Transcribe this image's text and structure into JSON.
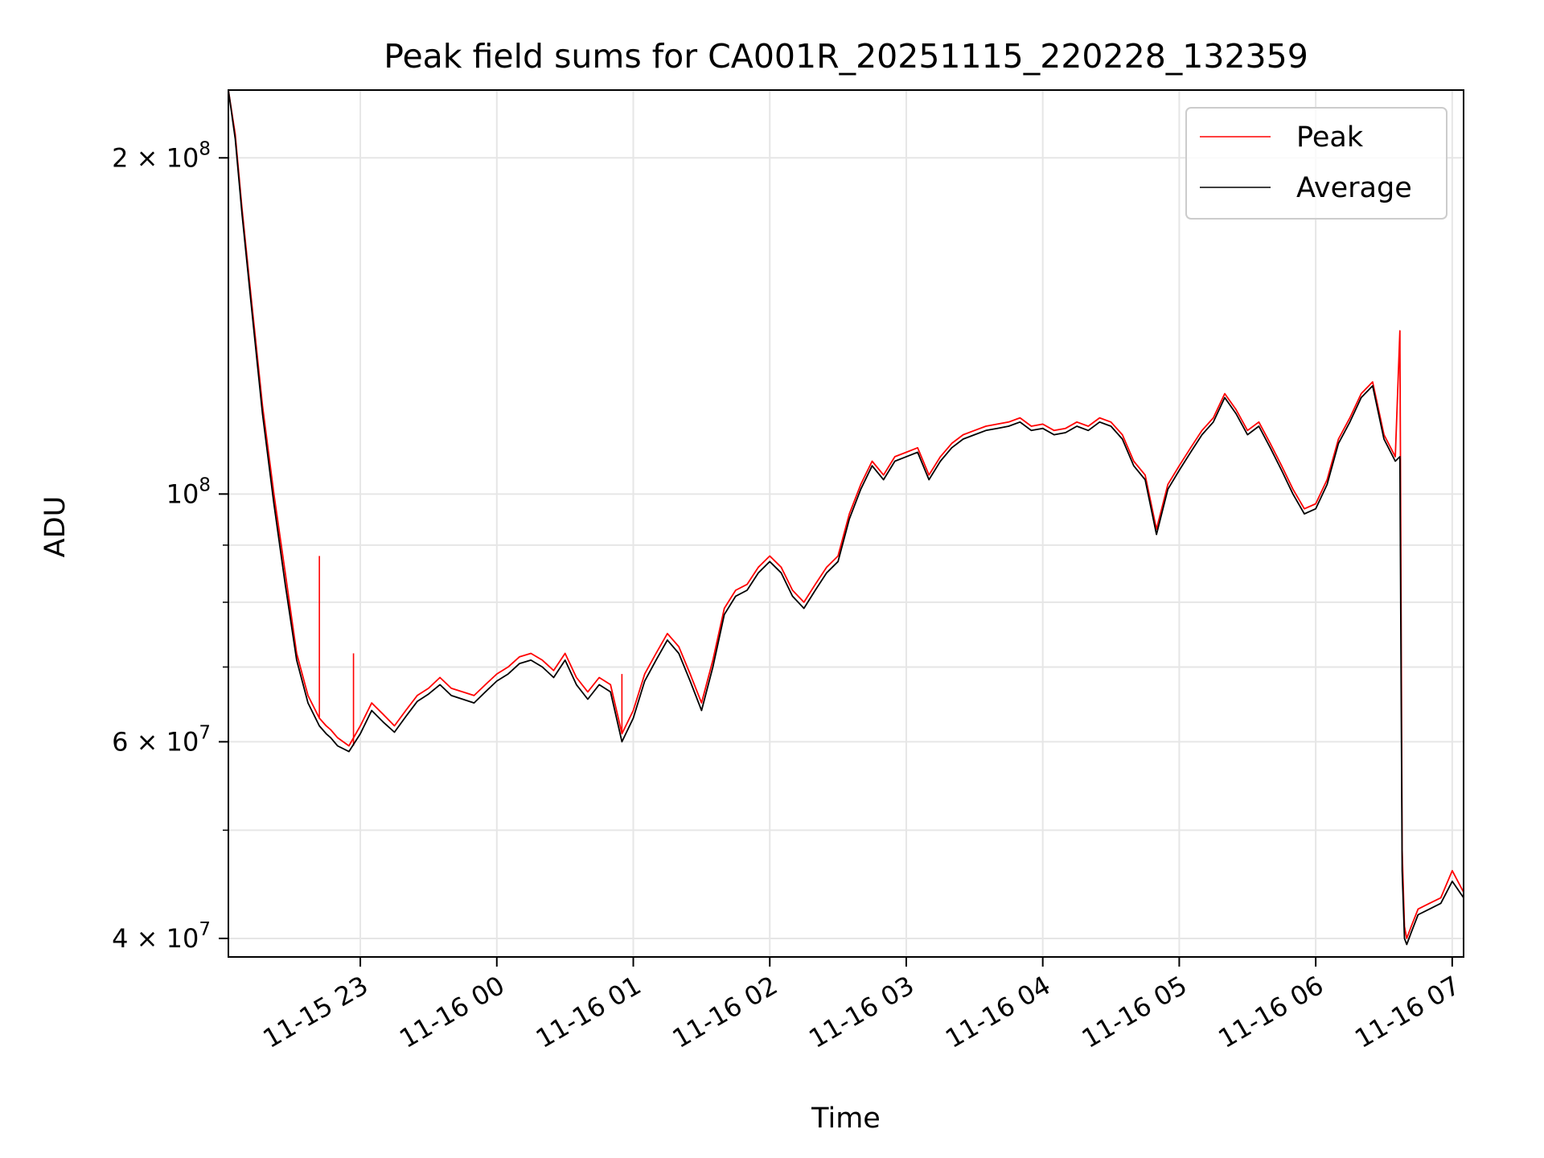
{
  "chart_data": {
    "type": "line",
    "title": "Peak field sums for CA001R_20251115_220228_132359",
    "xlabel": "Time",
    "ylabel": "ADU",
    "yscale": "log",
    "ylim": [
      38500000,
      230000000
    ],
    "xlim": [
      "2025-11-15 22:02",
      "2025-11-16 07:05"
    ],
    "grid": true,
    "legend_position": "top-right",
    "x_ticks": [
      {
        "value": "2025-11-15 23:00",
        "label": "11-15 23"
      },
      {
        "value": "2025-11-16 00:00",
        "label": "11-16 00"
      },
      {
        "value": "2025-11-16 01:00",
        "label": "11-16 01"
      },
      {
        "value": "2025-11-16 02:00",
        "label": "11-16 02"
      },
      {
        "value": "2025-11-16 03:00",
        "label": "11-16 03"
      },
      {
        "value": "2025-11-16 04:00",
        "label": "11-16 04"
      },
      {
        "value": "2025-11-16 05:00",
        "label": "11-16 05"
      },
      {
        "value": "2025-11-16 06:00",
        "label": "11-16 06"
      },
      {
        "value": "2025-11-16 07:00",
        "label": "11-16 07"
      }
    ],
    "y_ticks": [
      {
        "value": 40000000,
        "base": "4 × 10",
        "exp": "7"
      },
      {
        "value": 60000000,
        "base": "6 × 10",
        "exp": "7"
      },
      {
        "value": 100000000,
        "base": "10",
        "exp": "8"
      },
      {
        "value": 200000000,
        "base": "2 × 10",
        "exp": "8"
      }
    ],
    "y_minor_ticks": [
      50000000,
      70000000,
      80000000,
      90000000
    ],
    "series": [
      {
        "name": "Peak",
        "color": "#ff0000",
        "x": [
          "2025-11-15 22:02",
          "2025-11-15 22:05",
          "2025-11-15 22:08",
          "2025-11-15 22:12",
          "2025-11-15 22:17",
          "2025-11-15 22:22",
          "2025-11-15 22:27",
          "2025-11-15 22:32",
          "2025-11-15 22:37",
          "2025-11-15 22:42",
          "2025-11-15 22:45",
          "2025-11-15 22:47",
          "2025-11-15 22:50",
          "2025-11-15 22:55",
          "2025-11-15 23:00",
          "2025-11-15 23:05",
          "2025-11-15 23:10",
          "2025-11-15 23:15",
          "2025-11-15 23:20",
          "2025-11-15 23:25",
          "2025-11-15 23:30",
          "2025-11-15 23:35",
          "2025-11-15 23:40",
          "2025-11-15 23:45",
          "2025-11-15 23:50",
          "2025-11-15 23:55",
          "2025-11-16 00:00",
          "2025-11-16 00:05",
          "2025-11-16 00:10",
          "2025-11-16 00:15",
          "2025-11-16 00:20",
          "2025-11-16 00:25",
          "2025-11-16 00:30",
          "2025-11-16 00:35",
          "2025-11-16 00:40",
          "2025-11-16 00:45",
          "2025-11-16 00:50",
          "2025-11-16 00:55",
          "2025-11-16 01:00",
          "2025-11-16 01:05",
          "2025-11-16 01:10",
          "2025-11-16 01:15",
          "2025-11-16 01:20",
          "2025-11-16 01:25",
          "2025-11-16 01:30",
          "2025-11-16 01:35",
          "2025-11-16 01:40",
          "2025-11-16 01:45",
          "2025-11-16 01:50",
          "2025-11-16 01:55",
          "2025-11-16 02:00",
          "2025-11-16 02:05",
          "2025-11-16 02:10",
          "2025-11-16 02:15",
          "2025-11-16 02:20",
          "2025-11-16 02:25",
          "2025-11-16 02:30",
          "2025-11-16 02:35",
          "2025-11-16 02:40",
          "2025-11-16 02:45",
          "2025-11-16 02:50",
          "2025-11-16 02:55",
          "2025-11-16 03:00",
          "2025-11-16 03:05",
          "2025-11-16 03:10",
          "2025-11-16 03:15",
          "2025-11-16 03:20",
          "2025-11-16 03:25",
          "2025-11-16 03:30",
          "2025-11-16 03:35",
          "2025-11-16 03:40",
          "2025-11-16 03:45",
          "2025-11-16 03:50",
          "2025-11-16 03:55",
          "2025-11-16 04:00",
          "2025-11-16 04:05",
          "2025-11-16 04:10",
          "2025-11-16 04:15",
          "2025-11-16 04:20",
          "2025-11-16 04:25",
          "2025-11-16 04:30",
          "2025-11-16 04:35",
          "2025-11-16 04:40",
          "2025-11-16 04:45",
          "2025-11-16 04:50",
          "2025-11-16 04:55",
          "2025-11-16 05:00",
          "2025-11-16 05:05",
          "2025-11-16 05:10",
          "2025-11-16 05:15",
          "2025-11-16 05:20",
          "2025-11-16 05:25",
          "2025-11-16 05:30",
          "2025-11-16 05:35",
          "2025-11-16 05:40",
          "2025-11-16 05:45",
          "2025-11-16 05:50",
          "2025-11-16 05:55",
          "2025-11-16 06:00",
          "2025-11-16 06:05",
          "2025-11-16 06:10",
          "2025-11-16 06:15",
          "2025-11-16 06:20",
          "2025-11-16 06:25",
          "2025-11-16 06:30",
          "2025-11-16 06:35",
          "2025-11-16 06:37",
          "2025-11-16 06:38",
          "2025-11-16 06:39",
          "2025-11-16 06:40",
          "2025-11-16 06:42",
          "2025-11-16 06:45",
          "2025-11-16 06:50",
          "2025-11-16 06:55",
          "2025-11-16 07:00",
          "2025-11-16 07:05"
        ],
        "values": [
          230000000,
          210000000,
          180000000,
          150000000,
          120000000,
          100000000,
          85000000,
          72000000,
          66000000,
          63000000,
          62000000,
          61500000,
          60500000,
          59500000,
          62000000,
          65000000,
          63500000,
          62000000,
          64000000,
          66000000,
          67000000,
          68500000,
          67000000,
          66500000,
          66000000,
          67500000,
          69000000,
          70000000,
          71500000,
          72000000,
          71000000,
          69500000,
          72000000,
          68500000,
          66500000,
          68500000,
          67500000,
          61000000,
          64000000,
          69000000,
          72000000,
          75000000,
          73000000,
          69000000,
          65000000,
          71000000,
          79000000,
          82000000,
          83000000,
          86000000,
          88000000,
          86000000,
          82000000,
          80000000,
          83000000,
          86000000,
          88000000,
          96000000,
          102000000,
          107000000,
          104000000,
          108000000,
          109000000,
          110000000,
          104000000,
          108000000,
          111000000,
          113000000,
          114000000,
          115000000,
          115500000,
          116000000,
          117000000,
          115000000,
          115500000,
          114000000,
          114500000,
          116000000,
          115000000,
          117000000,
          116000000,
          113000000,
          107000000,
          104000000,
          93000000,
          102000000,
          106000000,
          110000000,
          114000000,
          117000000,
          123000000,
          119000000,
          114000000,
          116000000,
          111000000,
          106000000,
          101000000,
          97000000,
          98000000,
          103000000,
          112000000,
          117000000,
          123000000,
          126000000,
          113000000,
          108000000,
          140000000,
          48000000,
          41000000,
          40000000,
          41000000,
          42500000,
          43000000,
          43500000,
          46000000,
          44000000
        ],
        "annotations_spikes": [
          {
            "x": "2025-11-15 22:42",
            "value": 88000000
          },
          {
            "x": "2025-11-15 22:57",
            "value": 72000000
          },
          {
            "x": "2025-11-16 00:55",
            "value": 69000000
          }
        ]
      },
      {
        "name": "Average",
        "color": "#000000",
        "x": [
          "2025-11-15 22:02",
          "2025-11-15 22:05",
          "2025-11-15 22:08",
          "2025-11-15 22:12",
          "2025-11-15 22:17",
          "2025-11-15 22:22",
          "2025-11-15 22:27",
          "2025-11-15 22:32",
          "2025-11-15 22:37",
          "2025-11-15 22:42",
          "2025-11-15 22:45",
          "2025-11-15 22:47",
          "2025-11-15 22:50",
          "2025-11-15 22:55",
          "2025-11-15 23:00",
          "2025-11-15 23:05",
          "2025-11-15 23:10",
          "2025-11-15 23:15",
          "2025-11-15 23:20",
          "2025-11-15 23:25",
          "2025-11-15 23:30",
          "2025-11-15 23:35",
          "2025-11-15 23:40",
          "2025-11-15 23:45",
          "2025-11-15 23:50",
          "2025-11-15 23:55",
          "2025-11-16 00:00",
          "2025-11-16 00:05",
          "2025-11-16 00:10",
          "2025-11-16 00:15",
          "2025-11-16 00:20",
          "2025-11-16 00:25",
          "2025-11-16 00:30",
          "2025-11-16 00:35",
          "2025-11-16 00:40",
          "2025-11-16 00:45",
          "2025-11-16 00:50",
          "2025-11-16 00:55",
          "2025-11-16 01:00",
          "2025-11-16 01:05",
          "2025-11-16 01:10",
          "2025-11-16 01:15",
          "2025-11-16 01:20",
          "2025-11-16 01:25",
          "2025-11-16 01:30",
          "2025-11-16 01:35",
          "2025-11-16 01:40",
          "2025-11-16 01:45",
          "2025-11-16 01:50",
          "2025-11-16 01:55",
          "2025-11-16 02:00",
          "2025-11-16 02:05",
          "2025-11-16 02:10",
          "2025-11-16 02:15",
          "2025-11-16 02:20",
          "2025-11-16 02:25",
          "2025-11-16 02:30",
          "2025-11-16 02:35",
          "2025-11-16 02:40",
          "2025-11-16 02:45",
          "2025-11-16 02:50",
          "2025-11-16 02:55",
          "2025-11-16 03:00",
          "2025-11-16 03:05",
          "2025-11-16 03:10",
          "2025-11-16 03:15",
          "2025-11-16 03:20",
          "2025-11-16 03:25",
          "2025-11-16 03:30",
          "2025-11-16 03:35",
          "2025-11-16 03:40",
          "2025-11-16 03:45",
          "2025-11-16 03:50",
          "2025-11-16 03:55",
          "2025-11-16 04:00",
          "2025-11-16 04:05",
          "2025-11-16 04:10",
          "2025-11-16 04:15",
          "2025-11-16 04:20",
          "2025-11-16 04:25",
          "2025-11-16 04:30",
          "2025-11-16 04:35",
          "2025-11-16 04:40",
          "2025-11-16 04:45",
          "2025-11-16 04:50",
          "2025-11-16 04:55",
          "2025-11-16 05:00",
          "2025-11-16 05:05",
          "2025-11-16 05:10",
          "2025-11-16 05:15",
          "2025-11-16 05:20",
          "2025-11-16 05:25",
          "2025-11-16 05:30",
          "2025-11-16 05:35",
          "2025-11-16 05:40",
          "2025-11-16 05:45",
          "2025-11-16 05:50",
          "2025-11-16 05:55",
          "2025-11-16 06:00",
          "2025-11-16 06:05",
          "2025-11-16 06:10",
          "2025-11-16 06:15",
          "2025-11-16 06:20",
          "2025-11-16 06:25",
          "2025-11-16 06:30",
          "2025-11-16 06:35",
          "2025-11-16 06:37",
          "2025-11-16 06:38",
          "2025-11-16 06:39",
          "2025-11-16 06:40",
          "2025-11-16 06:42",
          "2025-11-16 06:45",
          "2025-11-16 06:50",
          "2025-11-16 06:55",
          "2025-11-16 07:00",
          "2025-11-16 07:05"
        ],
        "values": [
          230000000,
          208000000,
          178000000,
          148000000,
          118000000,
          98000000,
          83000000,
          71000000,
          65000000,
          62000000,
          61000000,
          60500000,
          59500000,
          58800000,
          61000000,
          64000000,
          62500000,
          61200000,
          63200000,
          65200000,
          66200000,
          67500000,
          66000000,
          65500000,
          65000000,
          66500000,
          68000000,
          69000000,
          70500000,
          71000000,
          70000000,
          68500000,
          71000000,
          67500000,
          65500000,
          67500000,
          66500000,
          60000000,
          63000000,
          68000000,
          71000000,
          74000000,
          72000000,
          68000000,
          64000000,
          70000000,
          78000000,
          81000000,
          82000000,
          85000000,
          87000000,
          85000000,
          81000000,
          79000000,
          82000000,
          85000000,
          87000000,
          95000000,
          101000000,
          106000000,
          103000000,
          107000000,
          108000000,
          109000000,
          103000000,
          107000000,
          110000000,
          112000000,
          113000000,
          114000000,
          114500000,
          115000000,
          116000000,
          114000000,
          114500000,
          113000000,
          113500000,
          115000000,
          114000000,
          116000000,
          115000000,
          112000000,
          106000000,
          103000000,
          92000000,
          101000000,
          105000000,
          109000000,
          113000000,
          116000000,
          122000000,
          118000000,
          113000000,
          115000000,
          110000000,
          105000000,
          100000000,
          96000000,
          97000000,
          102000000,
          111000000,
          116000000,
          122000000,
          125000000,
          112000000,
          107000000,
          108000000,
          46000000,
          40000000,
          39500000,
          40500000,
          42000000,
          42500000,
          43000000,
          45000000,
          43500000
        ]
      }
    ]
  }
}
